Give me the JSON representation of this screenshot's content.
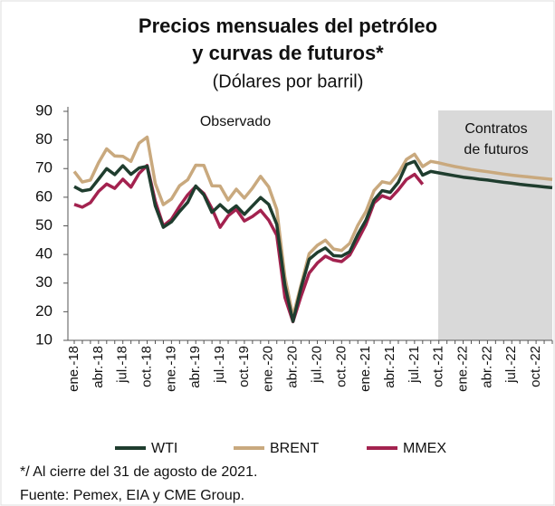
{
  "chart_data": {
    "type": "line",
    "title": [
      "Precios mensuales del petróleo",
      "y curvas de futuros*"
    ],
    "subtitle": "(Dólares por barril)",
    "annotations": [
      "Observado",
      "Contratos",
      "de futuros"
    ],
    "notes": [
      "*/ Al cierre del 31 de agosto de 2021.",
      "Fuente: Pemex, EIA y CME Group."
    ],
    "categories": [
      "ene.-18",
      null,
      null,
      "abr.-18",
      null,
      null,
      "jul.-18",
      null,
      null,
      "oct.-18",
      null,
      null,
      "ene.-19",
      null,
      null,
      "abr.-19",
      null,
      null,
      "jul.-19",
      null,
      null,
      "oct.-19",
      null,
      null,
      "ene.-20",
      null,
      null,
      "abr.-20",
      null,
      null,
      "jul.-20",
      null,
      null,
      "oct.-20",
      null,
      null,
      "ene.-21",
      null,
      null,
      "abr.-21",
      null,
      null,
      "jul.-21",
      null,
      null,
      "oct.-21",
      null,
      null,
      "ene.-22",
      null,
      null,
      "abr.-22",
      null,
      null,
      "jul.-22",
      null,
      null,
      "oct.-22",
      null,
      null
    ],
    "series": [
      {
        "name": "WTI",
        "color": "#1f3d2e",
        "values": [
          63.7,
          62.2,
          62.7,
          66.3,
          70,
          67.9,
          71,
          68,
          70.2,
          70.8,
          57,
          49.5,
          51.4,
          55,
          58.2,
          63.9,
          60.8,
          54.7,
          57.4,
          54.8,
          57,
          54,
          57,
          59.9,
          57.5,
          50.5,
          29.2,
          16.6,
          28.5,
          38.3,
          40.7,
          42.3,
          39.6,
          39.4,
          41,
          47,
          52,
          59,
          62.3,
          61.7,
          65.2,
          71.4,
          72.5,
          67.7,
          69,
          68.5,
          68,
          67.5,
          67,
          66.7,
          66.3,
          66,
          65.6,
          65.2,
          64.9,
          64.5,
          64.2,
          63.9,
          63.6,
          63.3
        ]
      },
      {
        "name": "BRENT",
        "color": "#c9a97e",
        "values": [
          69,
          65.3,
          66,
          72,
          76.9,
          74.4,
          74.3,
          72.5,
          78.9,
          81,
          64.8,
          57.4,
          59.4,
          64,
          66.1,
          71.2,
          71.1,
          64,
          63.9,
          59,
          62.8,
          59.7,
          63.2,
          67.3,
          63.6,
          55.7,
          32,
          18.4,
          29.4,
          40.3,
          43.2,
          45,
          41.9,
          41.4,
          43.9,
          50.2,
          55,
          62.3,
          65.4,
          64.8,
          68.3,
          73.2,
          75,
          70.7,
          72.5,
          72,
          71.3,
          70.7,
          70.2,
          69.7,
          69.3,
          68.9,
          68.5,
          68.1,
          67.7,
          67.4,
          67.1,
          66.8,
          66.5,
          66.2
        ]
      },
      {
        "name": "MMEX",
        "color": "#a3224f",
        "values": [
          57.5,
          56.5,
          58.1,
          62,
          64.6,
          63.1,
          66.3,
          63.5,
          68.3,
          71.1,
          58.6,
          50,
          52.3,
          56.8,
          60.8,
          63.8,
          61.3,
          56,
          49.5,
          53.5,
          55.8,
          51.7,
          53.3,
          55.4,
          52,
          46.7,
          25,
          16.5,
          25.5,
          33.5,
          37,
          39.4,
          38,
          37.5,
          39.8,
          45,
          50.5,
          58,
          60.5,
          59.5,
          62.6,
          66.2,
          68,
          64.5,
          null,
          null,
          null,
          null,
          null,
          null,
          null,
          null,
          null,
          null,
          null,
          null,
          null,
          null,
          null,
          null
        ]
      }
    ],
    "ylim": [
      10,
      90
    ],
    "yticks": [
      10,
      20,
      30,
      40,
      50,
      60,
      70,
      80,
      90
    ]
  }
}
